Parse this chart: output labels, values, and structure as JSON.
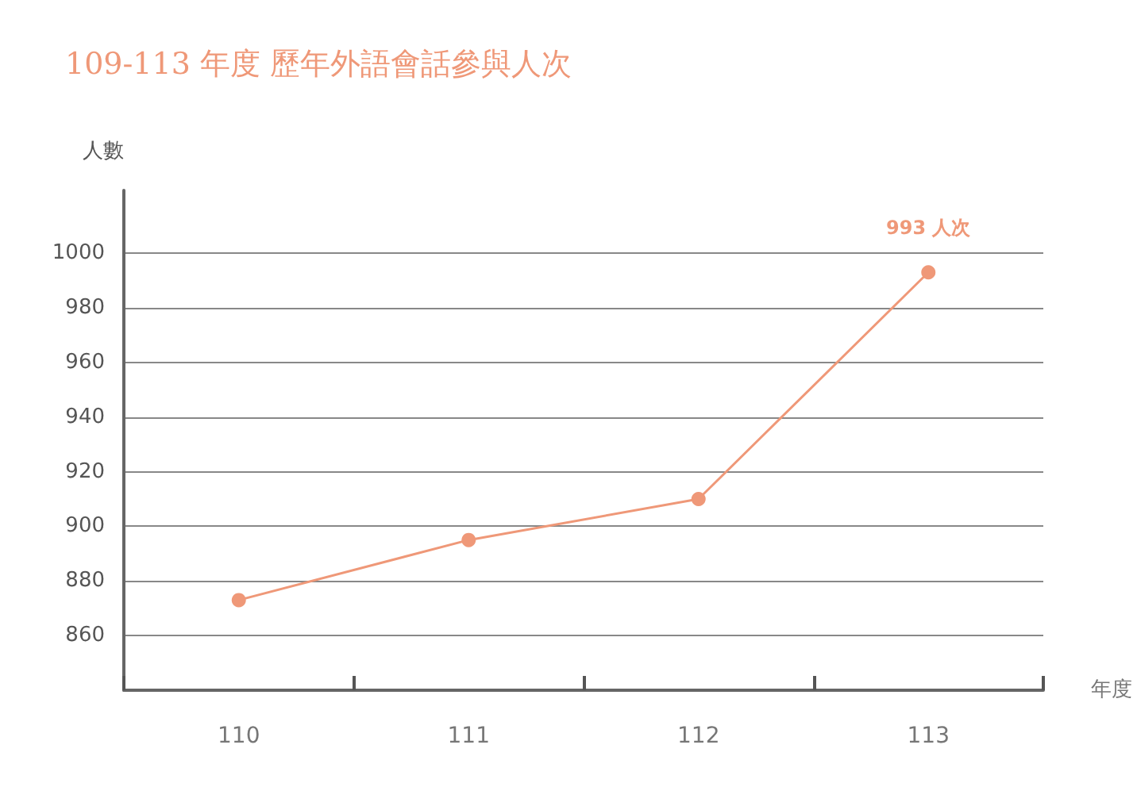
{
  "chart_data": {
    "type": "line",
    "title": "109-113 年度 歷年外語會話參與人次",
    "xlabel": "年度",
    "ylabel": "人數",
    "categories": [
      "110",
      "111",
      "112",
      "113"
    ],
    "series": [
      {
        "color": "#ef9878",
        "values": [
          873,
          895,
          910,
          993
        ]
      }
    ],
    "ylim": [
      840,
      1023
    ],
    "yticks": [
      860,
      880,
      900,
      920,
      940,
      960,
      980,
      1000
    ],
    "grid": "y",
    "marker": "circle",
    "line_style": "solid",
    "annotations": [
      {
        "text": "993 人次",
        "x": "113",
        "y": 993
      }
    ]
  }
}
